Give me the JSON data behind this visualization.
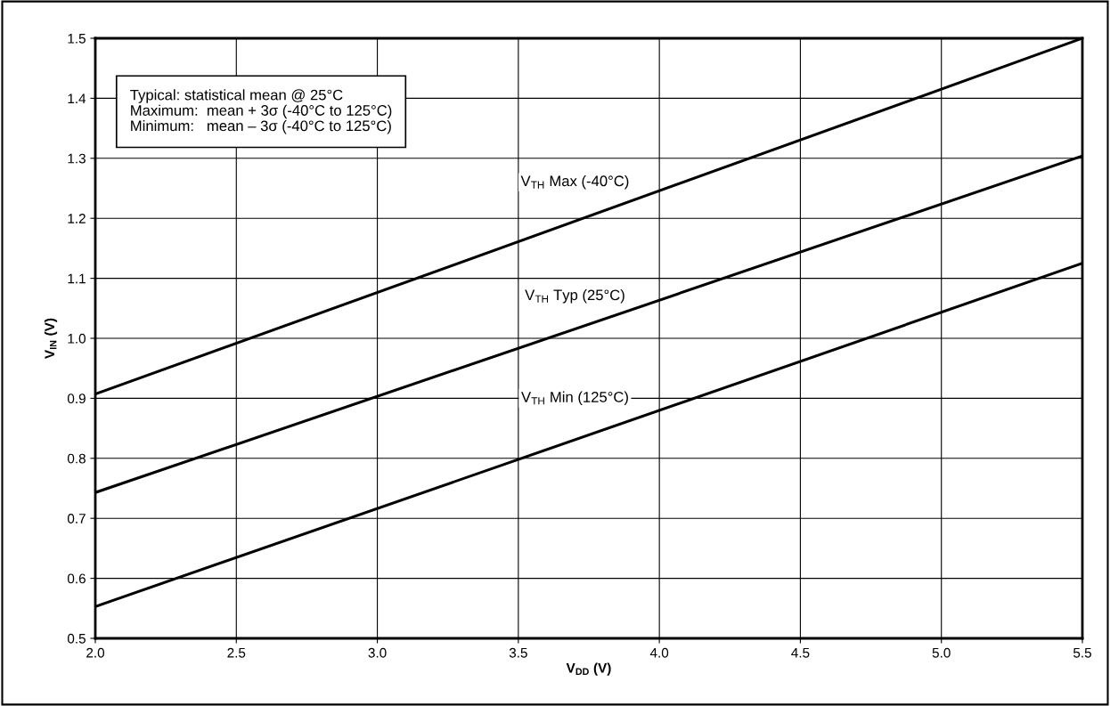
{
  "chart_data": {
    "type": "line",
    "xlabel": "V$_{DD}$ (V)",
    "ylabel": "V$_{IN}$ (V)",
    "x": [
      2.0,
      5.5
    ],
    "series": [
      {
        "color": "#000000",
        "values": [
          0.907,
          1.5
        ]
      },
      {
        "color": "#000000",
        "values": [
          0.743,
          1.304
        ]
      },
      {
        "color": "#000000",
        "values": [
          0.553,
          1.125
        ]
      }
    ],
    "xlim": [
      2.0,
      5.5
    ],
    "ylim": [
      0.5,
      1.5
    ],
    "xticks": [
      {
        "value": 2.0,
        "label": "2.0"
      },
      2.5,
      {
        "value": 3.0,
        "label": "3.0"
      },
      3.5,
      {
        "value": 4.0,
        "label": "4.0"
      },
      4.5,
      {
        "value": 5.0,
        "label": "5.0"
      },
      5.5
    ],
    "yticks": [
      0.5,
      0.6,
      0.7,
      0.8,
      0.9,
      {
        "value": 1.0,
        "label": "1.0"
      },
      1.1,
      1.2,
      1.3,
      1.4,
      {
        "value": 1.5,
        "label": "1.5"
      }
    ],
    "grid": true,
    "marker": "none",
    "line_style": "solid",
    "annotations": [
      "Typical: statistical mean @ 25°C\nMaximum:  mean + 3σ (-40°C to 125°C)\nMinimum:   mean – 3σ (-40°C to 125°C)",
      "V$_{TH}$ Max (-40°C)",
      "V$_{TH}$ Typ (25°C)",
      "V$_{TH}$ Min (125°C)"
    ]
  }
}
